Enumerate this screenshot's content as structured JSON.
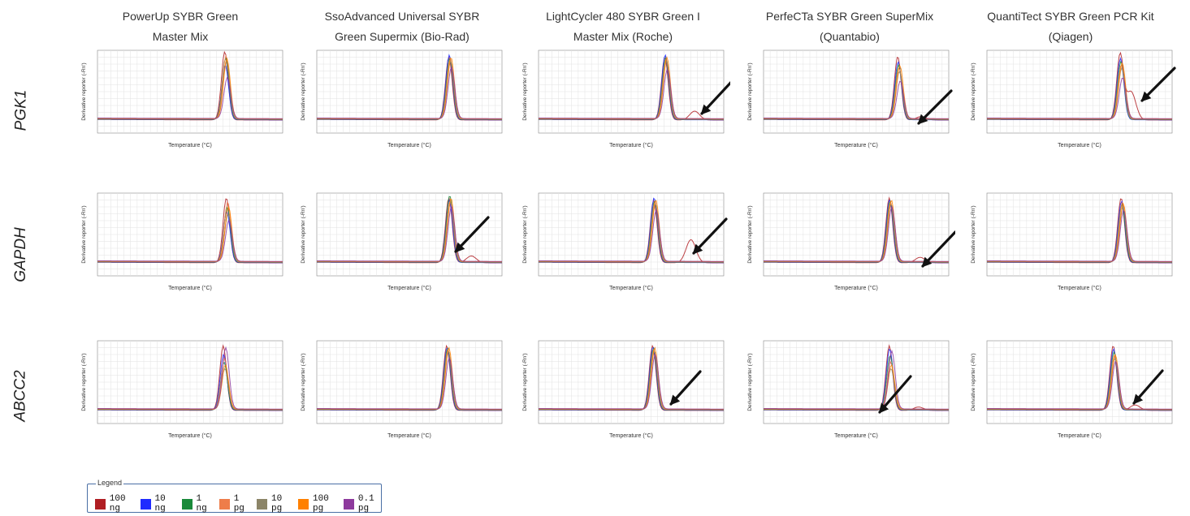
{
  "columns": [
    {
      "line1": "PowerUp SYBR Green",
      "line2": "Master Mix"
    },
    {
      "line1": "SsoAdvanced Universal SYBR",
      "line2": "Green Supermix (Bio-Rad)"
    },
    {
      "line1": "LightCycler 480 SYBR Green I",
      "line2": "Master Mix (Roche)"
    },
    {
      "line1": "PerfeCTa SYBR Green SuperMix",
      "line2": "(Quantabio)"
    },
    {
      "line1": "QuantiTect SYBR Green PCR Kit",
      "line2": "(Qiagen)"
    }
  ],
  "rows": [
    "PGK1",
    "GAPDH",
    "ABCC2"
  ],
  "panel_text": {
    "ylabel": "Derivative reporter (-Rn')",
    "xlabel": "Temperature (°C)"
  },
  "legend": {
    "title": "Legend",
    "items": [
      {
        "label": "100 ng",
        "color": "#b01e23"
      },
      {
        "label": "10 ng",
        "color": "#1f2bff"
      },
      {
        "label": "1 ng",
        "color": "#1a8a3a"
      },
      {
        "label": "1 pg",
        "color": "#ee7d4a"
      },
      {
        "label": "10 pg",
        "color": "#8c8568"
      },
      {
        "label": "100 pg",
        "color": "#ff8000"
      },
      {
        "label": "0.1 pg",
        "color": "#8e3a9d"
      }
    ]
  },
  "chart_data": {
    "type": "line",
    "xlabel": "Temperature (°C)",
    "ylabel": "Derivative reporter (-Rn')",
    "xlim": [
      60,
      95
    ],
    "series_names": [
      "100 ng",
      "10 ng",
      "1 ng",
      "1 pg",
      "10 pg",
      "100 pg",
      "0.1 pg"
    ],
    "panels": [
      {
        "row": "PGK1",
        "column": 0,
        "peak_temp": 84.3,
        "peak_heights": [
          1.0,
          0.8,
          0.9,
          0.93,
          0.85,
          0.88,
          0.6
        ],
        "secondary_peak": null,
        "arrow": false
      },
      {
        "row": "PGK1",
        "column": 1,
        "peak_temp": 85.2,
        "peak_heights": [
          0.92,
          0.95,
          0.9,
          0.88,
          0.85,
          0.9,
          0.75
        ],
        "secondary_peak": null,
        "arrow": false
      },
      {
        "row": "PGK1",
        "column": 2,
        "peak_temp": 84.1,
        "peak_heights": [
          0.92,
          0.95,
          0.9,
          0.88,
          0.85,
          0.9,
          0.72
        ],
        "secondary_peak": {
          "temp": 89.5,
          "height": 0.13
        },
        "arrow": true
      },
      {
        "row": "PGK1",
        "column": 3,
        "peak_temp": 85.6,
        "peak_heights": [
          0.93,
          0.85,
          0.8,
          0.75,
          0.7,
          0.78,
          0.55
        ],
        "secondary_peak": {
          "temp": 89.8,
          "height": 0.05
        },
        "arrow": true
      },
      {
        "row": "PGK1",
        "column": 4,
        "peak_temp": 85.4,
        "peak_heights": [
          0.95,
          0.9,
          0.85,
          0.8,
          0.75,
          0.82,
          0.6
        ],
        "secondary_peak": {
          "temp": 87.2,
          "height": 0.42
        },
        "arrow": true
      },
      {
        "row": "GAPDH",
        "column": 0,
        "peak_temp": 84.6,
        "peak_heights": [
          0.95,
          0.75,
          0.8,
          0.88,
          0.7,
          0.8,
          0.6
        ],
        "secondary_peak": null,
        "arrow": false
      },
      {
        "row": "GAPDH",
        "column": 1,
        "peak_temp": 85.2,
        "peak_heights": [
          0.95,
          0.92,
          0.98,
          0.9,
          0.88,
          0.93,
          0.8
        ],
        "secondary_peak": {
          "temp": 89.2,
          "height": 0.1
        },
        "arrow": true
      },
      {
        "row": "GAPDH",
        "column": 2,
        "peak_temp": 82.0,
        "peak_heights": [
          0.92,
          0.95,
          0.9,
          0.88,
          0.85,
          0.9,
          0.75
        ],
        "secondary_peak": {
          "temp": 88.8,
          "height": 0.34
        },
        "arrow": true
      },
      {
        "row": "GAPDH",
        "column": 3,
        "peak_temp": 84.0,
        "peak_heights": [
          0.95,
          0.92,
          0.9,
          0.88,
          0.85,
          0.9,
          0.8
        ],
        "secondary_peak": {
          "temp": 89.6,
          "height": 0.08
        },
        "arrow": true
      },
      {
        "row": "GAPDH",
        "column": 4,
        "peak_temp": 85.6,
        "peak_heights": [
          0.95,
          0.9,
          0.85,
          0.88,
          0.8,
          0.85,
          0.75
        ],
        "secondary_peak": null,
        "arrow": false
      },
      {
        "row": "ABCC2",
        "column": 0,
        "peak_temp": 84.0,
        "peak_heights": [
          0.95,
          0.82,
          0.7,
          0.75,
          0.6,
          0.65,
          0.9
        ],
        "secondary_peak": null,
        "arrow": false
      },
      {
        "row": "ABCC2",
        "column": 1,
        "peak_temp": 84.8,
        "peak_heights": [
          0.95,
          0.92,
          0.9,
          0.88,
          0.85,
          0.9,
          0.75
        ],
        "secondary_peak": null,
        "arrow": false
      },
      {
        "row": "ABCC2",
        "column": 2,
        "peak_temp": 81.8,
        "peak_heights": [
          0.95,
          0.93,
          0.9,
          0.88,
          0.85,
          0.9,
          0.8
        ],
        "secondary_peak": null,
        "arrow": true
      },
      {
        "row": "ABCC2",
        "column": 3,
        "peak_temp": 84.0,
        "peak_heights": [
          0.95,
          0.9,
          0.8,
          0.7,
          0.6,
          0.65,
          0.85
        ],
        "secondary_peak": {
          "temp": 89.3,
          "height": 0.05
        },
        "arrow": true
      },
      {
        "row": "ABCC2",
        "column": 4,
        "peak_temp": 84.1,
        "peak_heights": [
          0.95,
          0.9,
          0.85,
          0.8,
          0.75,
          0.8,
          0.7
        ],
        "secondary_peak": {
          "temp": 88.0,
          "height": 0.08
        },
        "arrow": true
      }
    ]
  }
}
